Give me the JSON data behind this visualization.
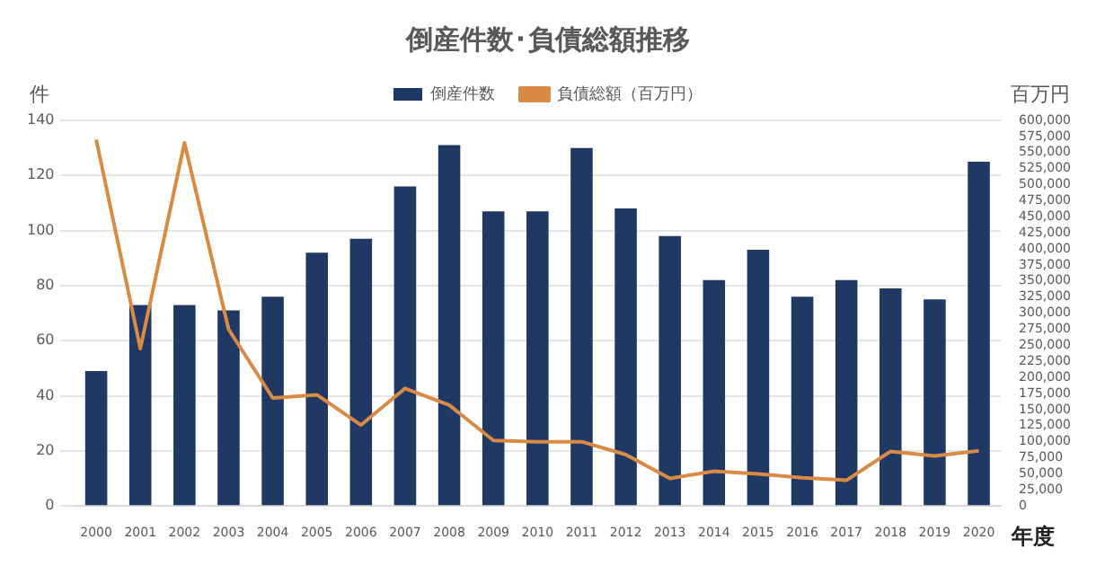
{
  "chart_data": {
    "type": "bar",
    "title": "倒産件数･負債総額推移",
    "xlabel": "年度",
    "ylabel": "件",
    "y2label": "百万円",
    "categories": [
      "2000",
      "2001",
      "2002",
      "2003",
      "2004",
      "2005",
      "2006",
      "2007",
      "2008",
      "2009",
      "2010",
      "2011",
      "2012",
      "2013",
      "2014",
      "2015",
      "2016",
      "2017",
      "2018",
      "2019",
      "2020"
    ],
    "series": [
      {
        "name": "倒産件数",
        "color": "#1f3864",
        "values": [
          49,
          73,
          73,
          71,
          76,
          92,
          97,
          116,
          131,
          107,
          107,
          130,
          108,
          98,
          82,
          93,
          76,
          82,
          79,
          75,
          125
        ]
      },
      {
        "name": "負債総額（百万円）",
        "type": "line",
        "axis": "y2",
        "color": "#d98a45",
        "values": [
          570000,
          245000,
          565000,
          275000,
          168000,
          173000,
          126000,
          183000,
          157000,
          102000,
          100000,
          100000,
          80000,
          43000,
          54000,
          50000,
          44000,
          40000,
          85000,
          78000,
          86000
        ]
      }
    ],
    "ylim": [
      0,
      140
    ],
    "yticks": [
      0,
      20,
      40,
      60,
      80,
      100,
      120,
      140
    ],
    "y2lim": [
      0,
      600000
    ],
    "y2ticks": [
      0,
      {
        "value": 25000,
        "label": "25,000"
      },
      {
        "value": 50000,
        "label": "50,000"
      },
      {
        "value": 75000,
        "label": "75,000"
      },
      {
        "value": 100000,
        "label": "100,000"
      },
      {
        "value": 125000,
        "label": "125,000"
      },
      {
        "value": 150000,
        "label": "150,000"
      },
      {
        "value": 175000,
        "label": "175,000"
      },
      {
        "value": 200000,
        "label": "200,000"
      },
      {
        "value": 225000,
        "label": "225,000"
      },
      {
        "value": 250000,
        "label": "250,000"
      },
      {
        "value": 275000,
        "label": "275,000"
      },
      {
        "value": 300000,
        "label": "300,000"
      },
      {
        "value": 325000,
        "label": "325,000"
      },
      {
        "value": 350000,
        "label": "350,000"
      },
      {
        "value": 375000,
        "label": "375,000"
      },
      {
        "value": 400000,
        "label": "400,000"
      },
      {
        "value": 425000,
        "label": "425,000"
      },
      {
        "value": 450000,
        "label": "450,000"
      },
      {
        "value": 475000,
        "label": "475,000"
      },
      {
        "value": 500000,
        "label": "500,000"
      },
      {
        "value": 525000,
        "label": "525,000"
      },
      {
        "value": 550000,
        "label": "550,000"
      },
      {
        "value": 575000,
        "label": "575,000"
      },
      {
        "value": 600000,
        "label": "600,000"
      }
    ],
    "grid": "y",
    "legend": "top",
    "marker": "none",
    "line_style": "solid"
  }
}
